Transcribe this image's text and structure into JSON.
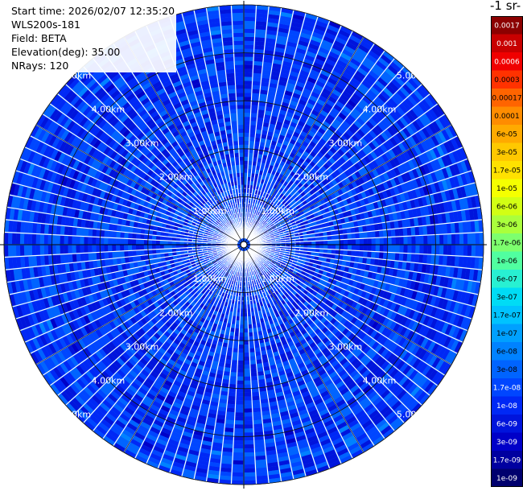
{
  "header": {
    "start_time": "Start time: 2026/02/07 12:35:20",
    "instrument": "WLS200s-181",
    "field": "Field: BETA",
    "elevation": "Elevation(deg): 35.00",
    "nrays": "NRays: 120"
  },
  "colorbar": {
    "unit_label": "-1 sr-",
    "ticks": [
      "0.0017",
      "0.001",
      "0.0006",
      "0.0003",
      "0.00017",
      "0.0001",
      "6e-05",
      "3e-05",
      "1.7e-05",
      "1e-05",
      "6e-06",
      "3e-06",
      "1.7e-06",
      "1e-06",
      "6e-07",
      "3e-07",
      "1.7e-07",
      "1e-07",
      "6e-08",
      "3e-08",
      "1.7e-08",
      "1e-08",
      "6e-09",
      "3e-09",
      "1.7e-09",
      "1e-09"
    ],
    "colors": [
      "#8c0000",
      "#c80000",
      "#f00000",
      "#ff3200",
      "#ff6400",
      "#ff8c00",
      "#ffaa00",
      "#ffc800",
      "#ffe100",
      "#f5ff00",
      "#d2ff14",
      "#aaff3c",
      "#7dff6e",
      "#50ffa0",
      "#28f0d2",
      "#00dcf5",
      "#00c3ff",
      "#00a0ff",
      "#0082ff",
      "#0064ff",
      "#0046ff",
      "#0028f5",
      "#0014dc",
      "#0000c8",
      "#0000a0",
      "#00006e"
    ]
  },
  "chart_data": {
    "type": "heatmap",
    "projection": "polar PPI scan",
    "rays": 120,
    "range_rings_km": [
      1,
      2,
      3,
      4,
      5
    ],
    "range_labels": [
      "1.00km",
      "2.00km",
      "3.00km",
      "4.00km",
      "5.00km"
    ],
    "max_range_km": 5.0,
    "value_range_log10": [
      -9,
      -7
    ],
    "dominant_range": "1e-08 to 6e-08",
    "grid": true
  }
}
